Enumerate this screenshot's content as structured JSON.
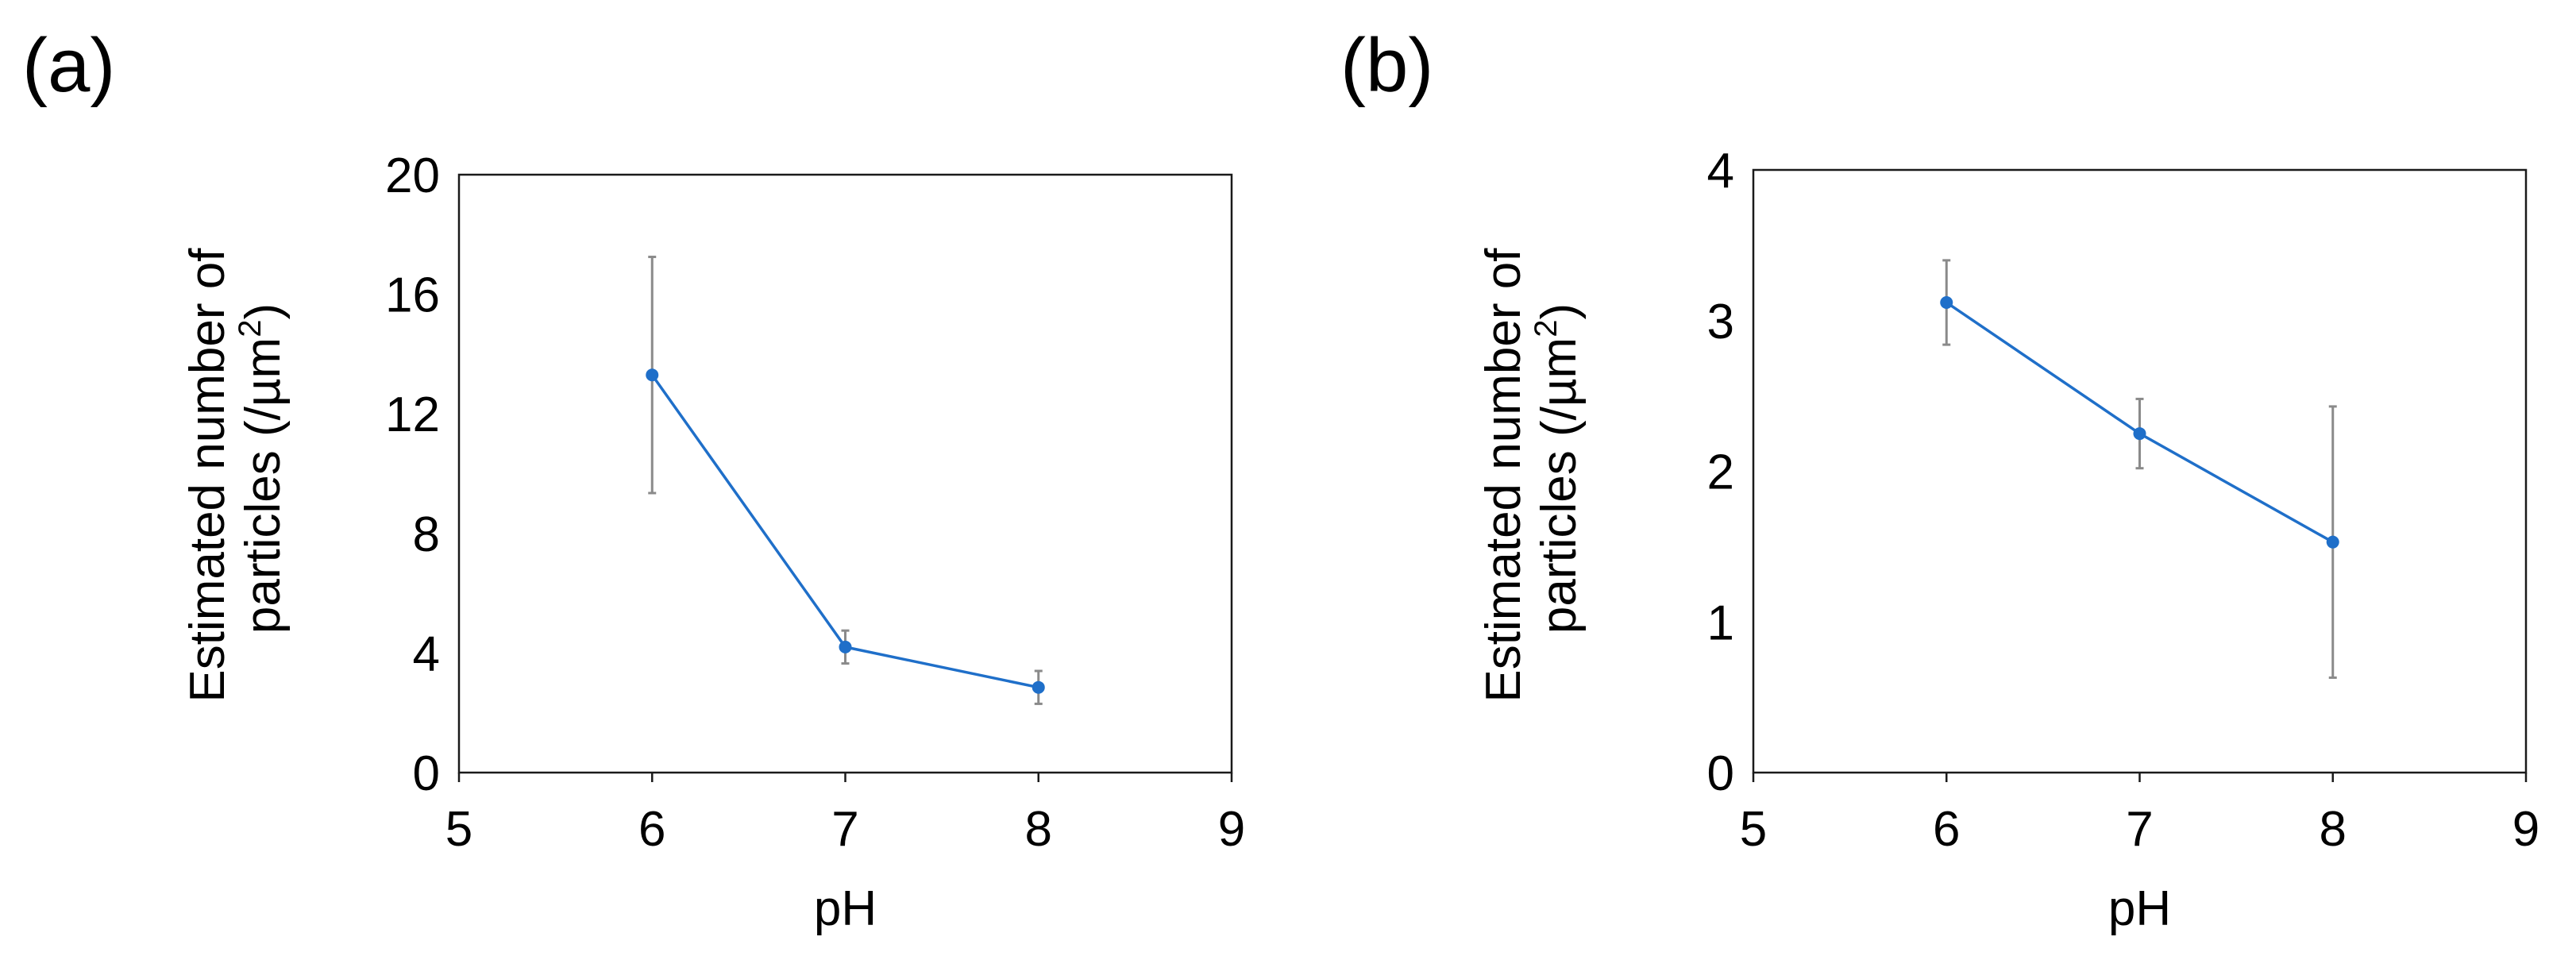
{
  "chart_data": [
    {
      "type": "line",
      "panel_label": "(a)",
      "xlabel": "pH",
      "ylabel_line1": "Estimated number of",
      "ylabel_line2_prefix": "particles (/µm",
      "ylabel_superscript": "2",
      "ylabel_line2_suffix": ")",
      "xlim": [
        5,
        9
      ],
      "ylim": [
        0,
        20
      ],
      "xticks": [
        "5",
        "6",
        "7",
        "8",
        "9"
      ],
      "yticks": [
        "0",
        "4",
        "8",
        "12",
        "16",
        "20"
      ],
      "series": [
        {
          "name": "particles",
          "color": "#1f6fc9",
          "x": [
            6,
            7,
            8
          ],
          "y": [
            13.3,
            4.2,
            2.85
          ],
          "err": [
            3.95,
            0.55,
            0.55
          ]
        }
      ]
    },
    {
      "type": "line",
      "panel_label": "(b)",
      "xlabel": "pH",
      "ylabel_line1": "Estimated number of",
      "ylabel_line2_prefix": "particles (/µm",
      "ylabel_superscript": "2",
      "ylabel_line2_suffix": ")",
      "xlim": [
        5,
        9
      ],
      "ylim": [
        0,
        4
      ],
      "xticks": [
        "5",
        "6",
        "7",
        "8",
        "9"
      ],
      "yticks": [
        "0",
        "1",
        "2",
        "3",
        "4"
      ],
      "series": [
        {
          "name": "particles",
          "color": "#1f6fc9",
          "x": [
            6,
            7,
            8
          ],
          "y": [
            3.12,
            2.25,
            1.53
          ],
          "err": [
            0.28,
            0.23,
            0.9
          ]
        }
      ]
    }
  ]
}
